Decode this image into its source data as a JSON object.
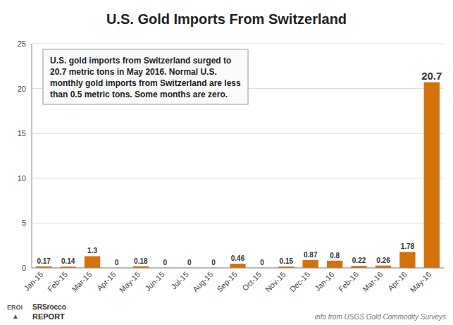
{
  "chart_data": {
    "type": "bar",
    "title": "U.S. Gold Imports From Switzerland",
    "categories": [
      "Jan-15",
      "Feb-15",
      "Mar-15",
      "Apr-15",
      "May-15",
      "Jun-15",
      "Jul-15",
      "Aug-15",
      "Sep-15",
      "Oct-15",
      "Nov-15",
      "Dec-15",
      "Jan-16",
      "Feb-16",
      "Mar-16",
      "Apr-16",
      "May-16"
    ],
    "values": [
      0.17,
      0.14,
      1.3,
      0,
      0.18,
      0,
      0,
      0,
      0.46,
      0,
      0.15,
      0.87,
      0.8,
      0.22,
      0.26,
      1.78,
      20.7
    ],
    "color": "#D4720A",
    "ylim": [
      0,
      25
    ],
    "yticks": [
      0,
      5,
      10,
      15,
      20,
      25
    ],
    "grid": true,
    "data_labels": true,
    "annotations": [
      "U.S. gold imports from Switzerland surged to\n20.7 metric tons in May 2016.  Normal U.S.\nmonthly gold imports from Switzerland are less\nthan 0.5 metric tons.  Some months are zero.",
      "info from USGS Gold Commodity Surveys",
      "EROI",
      "▲",
      "SRSrocco",
      "REPORT"
    ]
  }
}
